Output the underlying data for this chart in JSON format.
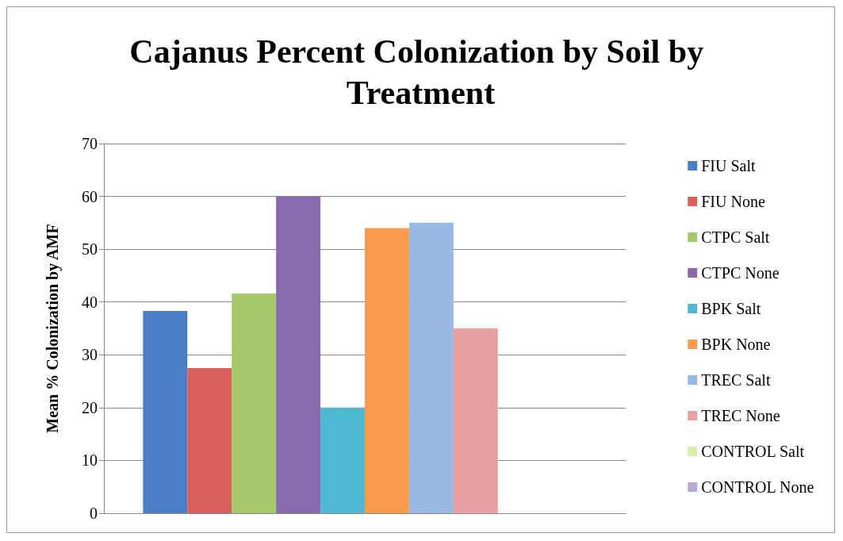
{
  "chart_data": {
    "type": "bar",
    "title": "Cajanus Percent Colonization by Soil by Treatment",
    "ylabel": "Mean % Colonization by AMF",
    "categories": [
      null
    ],
    "series": [
      {
        "name": "FIU Salt",
        "color": "#4a7fc8",
        "values": [
          38.3
        ]
      },
      {
        "name": "FIU None",
        "color": "#d9605c",
        "values": [
          27.5
        ]
      },
      {
        "name": "CTPC Salt",
        "color": "#a6c86a",
        "values": [
          41.6
        ]
      },
      {
        "name": "CTPC None",
        "color": "#8a6aae",
        "values": [
          60
        ]
      },
      {
        "name": "BPK Salt",
        "color": "#4fb8d2",
        "values": [
          20
        ]
      },
      {
        "name": "BPK None",
        "color": "#f99a4c",
        "values": [
          54
        ]
      },
      {
        "name": "TREC Salt",
        "color": "#9ab8e4",
        "values": [
          55
        ]
      },
      {
        "name": "TREC None",
        "color": "#e9a0a0",
        "values": [
          35
        ]
      },
      {
        "name": "CONTROL Salt",
        "color": "#d6f0a8",
        "values": [
          null
        ]
      },
      {
        "name": "CONTROL None",
        "color": "#bca8d8",
        "values": [
          null
        ]
      }
    ],
    "ylim": [
      0,
      70
    ],
    "yticks": [
      0,
      10,
      20,
      30,
      40,
      50,
      60,
      70
    ],
    "grid": "y",
    "legend": "right"
  }
}
